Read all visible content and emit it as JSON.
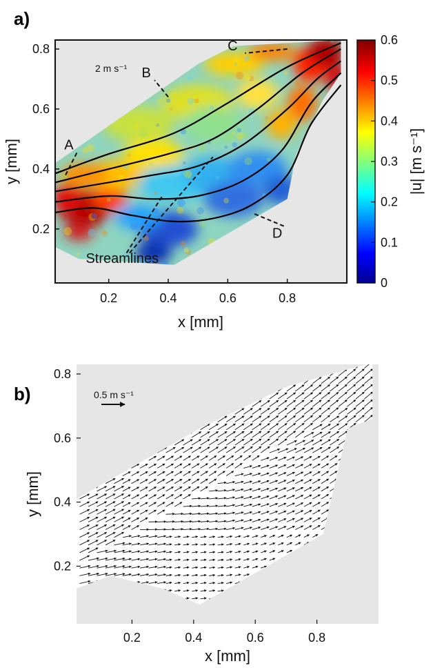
{
  "chart_data": [
    {
      "panel_label": "a)",
      "type": "heatmap",
      "xlabel": "x [mm]",
      "ylabel": "y [mm]",
      "xlim": [
        0.02,
        1.0
      ],
      "ylim": [
        0.02,
        0.83
      ],
      "xticks": [
        "0.2",
        "0.4",
        "0.6",
        "0.8"
      ],
      "yticks": [
        "0.2",
        "0.4",
        "0.6",
        "0.8"
      ],
      "colorbar": {
        "label": "|u| [m s⁻¹]",
        "range": [
          0,
          0.6
        ],
        "ticks": [
          "0",
          "0.1",
          "0.2",
          "0.3",
          "0.4",
          "0.5",
          "0.6"
        ],
        "colormap": "jet"
      },
      "scale_label": "2 m s⁻¹",
      "region_polygon": [
        [
          0.02,
          0.42
        ],
        [
          0.5,
          0.75
        ],
        [
          0.62,
          0.81
        ],
        [
          0.98,
          0.83
        ],
        [
          0.98,
          0.72
        ],
        [
          0.92,
          0.63
        ],
        [
          0.83,
          0.45
        ],
        [
          0.8,
          0.3
        ],
        [
          0.42,
          0.08
        ],
        [
          0.1,
          0.1
        ],
        [
          0.02,
          0.14
        ]
      ],
      "streamlines": [
        [
          [
            0.02,
            0.385
          ],
          [
            0.2,
            0.45
          ],
          [
            0.42,
            0.52
          ],
          [
            0.6,
            0.62
          ],
          [
            0.8,
            0.74
          ],
          [
            0.98,
            0.82
          ]
        ],
        [
          [
            0.02,
            0.355
          ],
          [
            0.2,
            0.4
          ],
          [
            0.4,
            0.45
          ],
          [
            0.55,
            0.5
          ],
          [
            0.7,
            0.6
          ],
          [
            0.85,
            0.72
          ],
          [
            0.98,
            0.8
          ]
        ],
        [
          [
            0.02,
            0.325
          ],
          [
            0.2,
            0.355
          ],
          [
            0.35,
            0.38
          ],
          [
            0.5,
            0.41
          ],
          [
            0.65,
            0.48
          ],
          [
            0.8,
            0.6
          ],
          [
            0.9,
            0.7
          ],
          [
            0.98,
            0.76
          ]
        ],
        [
          [
            0.02,
            0.29
          ],
          [
            0.2,
            0.31
          ],
          [
            0.35,
            0.3
          ],
          [
            0.5,
            0.31
          ],
          [
            0.65,
            0.36
          ],
          [
            0.78,
            0.46
          ],
          [
            0.88,
            0.62
          ],
          [
            0.98,
            0.72
          ]
        ],
        [
          [
            0.02,
            0.255
          ],
          [
            0.15,
            0.27
          ],
          [
            0.28,
            0.245
          ],
          [
            0.42,
            0.225
          ],
          [
            0.55,
            0.235
          ],
          [
            0.68,
            0.28
          ],
          [
            0.8,
            0.38
          ],
          [
            0.88,
            0.55
          ],
          [
            0.98,
            0.68
          ]
        ]
      ],
      "annotations": [
        {
          "text": "A",
          "x": 0.08,
          "y": 0.47,
          "tx": 0.055,
          "ty": 0.38
        },
        {
          "text": "B",
          "x": 0.34,
          "y": 0.71,
          "tx": 0.4,
          "ty": 0.64
        },
        {
          "text": "C",
          "x": 0.63,
          "y": 0.8,
          "tx": 0.8,
          "ty": 0.8
        },
        {
          "text": "D",
          "x": 0.78,
          "y": 0.175,
          "tx": 0.69,
          "ty": 0.25
        }
      ],
      "streamlines_label": {
        "text": "Streamlines",
        "x": 0.25,
        "y": 0.1
      }
    },
    {
      "panel_label": "b)",
      "type": "quiver",
      "xlabel": "x [mm]",
      "ylabel": "y [mm]",
      "xlim": [
        0.02,
        1.0
      ],
      "ylim": [
        0.02,
        0.83
      ],
      "xticks": [
        "0.2",
        "0.4",
        "0.6",
        "0.8"
      ],
      "yticks": [
        "0.2",
        "0.4",
        "0.6",
        "0.8"
      ],
      "scale_label": "0.5 m s⁻¹",
      "region_polygon": [
        [
          0.02,
          0.41
        ],
        [
          0.42,
          0.63
        ],
        [
          0.7,
          0.76
        ],
        [
          0.96,
          0.83
        ],
        [
          0.98,
          0.83
        ],
        [
          0.98,
          0.66
        ],
        [
          0.9,
          0.63
        ],
        [
          0.82,
          0.3
        ],
        [
          0.62,
          0.19
        ],
        [
          0.42,
          0.08
        ],
        [
          0.3,
          0.13
        ],
        [
          0.13,
          0.17
        ],
        [
          0.02,
          0.13
        ]
      ]
    }
  ]
}
